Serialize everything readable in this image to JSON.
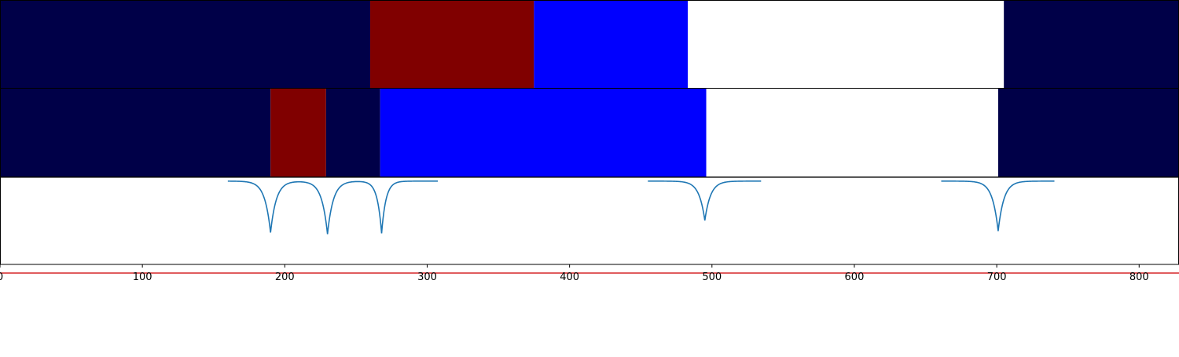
{
  "chart_data": {
    "type": "heatmap",
    "title": "",
    "xlabel": "",
    "ylabel": "",
    "xlim": [
      0,
      828
    ],
    "x_ticks": [
      0,
      100,
      200,
      300,
      400,
      500,
      600,
      700,
      800
    ],
    "x_tick_labels": [
      "0",
      "100",
      "200",
      "300",
      "400",
      "500",
      "600",
      "700",
      "800"
    ],
    "colors": {
      "navy": "#000048",
      "maroon": "#800000",
      "blue": "#0000ff",
      "white": "#ffffff",
      "signal_line": "#1f77b4",
      "threshold_line": "#d62728"
    },
    "segment_rows": [
      {
        "name": "",
        "segments": [
          {
            "start": 0,
            "end": 260,
            "color": "navy"
          },
          {
            "start": 260,
            "end": 375,
            "color": "maroon"
          },
          {
            "start": 375,
            "end": 483,
            "color": "blue"
          },
          {
            "start": 483,
            "end": 705,
            "color": "white"
          },
          {
            "start": 705,
            "end": 828,
            "color": "navy"
          }
        ]
      },
      {
        "name": "",
        "segments": [
          {
            "start": 0,
            "end": 190,
            "color": "navy"
          },
          {
            "start": 190,
            "end": 229,
            "color": "maroon"
          },
          {
            "start": 229,
            "end": 267,
            "color": "navy"
          },
          {
            "start": 267,
            "end": 496,
            "color": "blue"
          },
          {
            "start": 496,
            "end": 701,
            "color": "white"
          },
          {
            "start": 701,
            "end": 828,
            "color": "navy"
          }
        ]
      }
    ],
    "signal": {
      "type": "line",
      "ylim": [
        -1.0,
        0.15
      ],
      "baseline": 0.0,
      "dips": [
        {
          "x": 190,
          "depth": -0.68,
          "width": 4
        },
        {
          "x": 230,
          "depth": -0.7,
          "width": 4
        },
        {
          "x": 268,
          "depth": -0.69,
          "width": 3
        },
        {
          "x": 495,
          "depth": -0.52,
          "width": 4
        },
        {
          "x": 701,
          "depth": -0.66,
          "width": 4
        }
      ]
    },
    "threshold": {
      "y": -1.0
    }
  }
}
